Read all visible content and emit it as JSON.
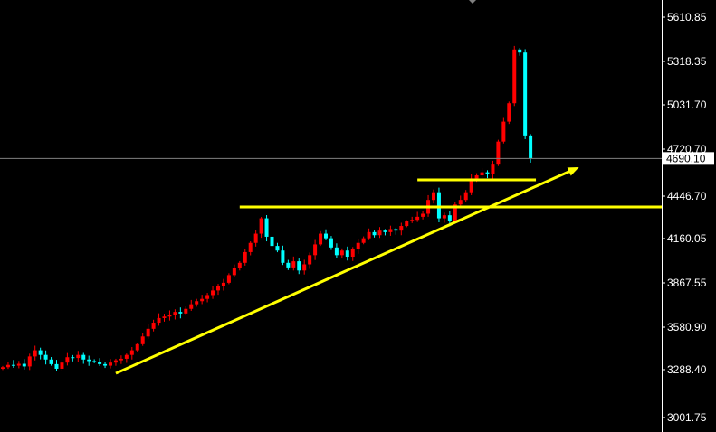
{
  "chart_data": {
    "type": "candlestick",
    "colors": {
      "background": "#000000",
      "bullish": "#ff0000",
      "bearish": "#00ffff",
      "drawings": "#ffff00",
      "axis": "#ffffff",
      "current_price_line": "#808080"
    },
    "ylim": [
      2990,
      5660
    ],
    "y_ticks": [
      "5610.85",
      "5318.35",
      "5031.70",
      "4720.70",
      "4446.70",
      "4160.05",
      "3867.55",
      "3580.90",
      "3288.40",
      "3001.75"
    ],
    "current_price": "4690.10",
    "closes": [
      3330,
      3345,
      3340,
      3352,
      3335,
      3400,
      3440,
      3410,
      3380,
      3350,
      3320,
      3360,
      3395,
      3390,
      3410,
      3380,
      3370,
      3365,
      3350,
      3340,
      3360,
      3375,
      3385,
      3410,
      3440,
      3480,
      3530,
      3580,
      3620,
      3650,
      3660,
      3670,
      3690,
      3680,
      3710,
      3740,
      3760,
      3775,
      3800,
      3830,
      3860,
      3880,
      3930,
      3975,
      4010,
      4080,
      4140,
      4200,
      4300,
      4180,
      4120,
      4090,
      4010,
      3980,
      4020,
      3960,
      4000,
      4060,
      4130,
      4200,
      4170,
      4110,
      4060,
      4090,
      4050,
      4100,
      4140,
      4170,
      4210,
      4190,
      4220,
      4210,
      4230,
      4220,
      4250,
      4280,
      4290,
      4310,
      4330,
      4420,
      4470,
      4300,
      4320,
      4280,
      4390,
      4420,
      4470,
      4560,
      4580,
      4600,
      4590,
      4650,
      4800,
      4930,
      5050,
      5400,
      5380,
      4840,
      4690.1
    ],
    "first_open": 3320,
    "drawings": {
      "horizontal_levels": [
        {
          "price": 4374,
          "from_index": 44
        },
        {
          "price": 4551,
          "from_index": 77,
          "to_index": 99
        }
      ],
      "trend_arrow": {
        "from": {
          "index": 21,
          "price": 3290
        },
        "to": {
          "index": 107,
          "price": 4633
        }
      }
    }
  }
}
